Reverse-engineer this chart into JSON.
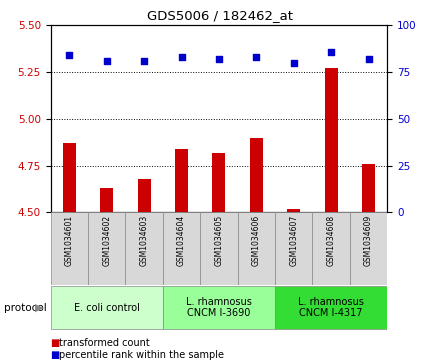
{
  "title": "GDS5006 / 182462_at",
  "samples": [
    "GSM1034601",
    "GSM1034602",
    "GSM1034603",
    "GSM1034604",
    "GSM1034605",
    "GSM1034606",
    "GSM1034607",
    "GSM1034608",
    "GSM1034609"
  ],
  "transformed_count": [
    4.87,
    4.63,
    4.68,
    4.84,
    4.82,
    4.9,
    4.52,
    5.27,
    4.76
  ],
  "percentile_rank": [
    84,
    81,
    81,
    83,
    82,
    83,
    80,
    86,
    82
  ],
  "ylim_left": [
    4.5,
    5.5
  ],
  "ylim_right": [
    0,
    100
  ],
  "yticks_left": [
    4.5,
    4.75,
    5.0,
    5.25,
    5.5
  ],
  "yticks_right": [
    0,
    25,
    50,
    75,
    100
  ],
  "bar_color": "#cc0000",
  "dot_color": "#0000cc",
  "protocol_groups": [
    {
      "label": "E. coli control",
      "start": 0,
      "end": 3,
      "color": "#ccffcc"
    },
    {
      "label": "L. rhamnosus\nCNCM I-3690",
      "start": 3,
      "end": 6,
      "color": "#99ff99"
    },
    {
      "label": "L. rhamnosus\nCNCM I-4317",
      "start": 6,
      "end": 9,
      "color": "#33dd33"
    }
  ],
  "legend_bar_label": "transformed count",
  "legend_dot_label": "percentile rank within the sample",
  "protocol_label": "protocol",
  "dotted_line_color": "#000000",
  "bg_color": "#ffffff",
  "tick_label_color_left": "#cc0000",
  "tick_label_color_right": "#0000cc",
  "sample_box_color": "#d8d8d8",
  "plot_bg_color": "#ffffff"
}
